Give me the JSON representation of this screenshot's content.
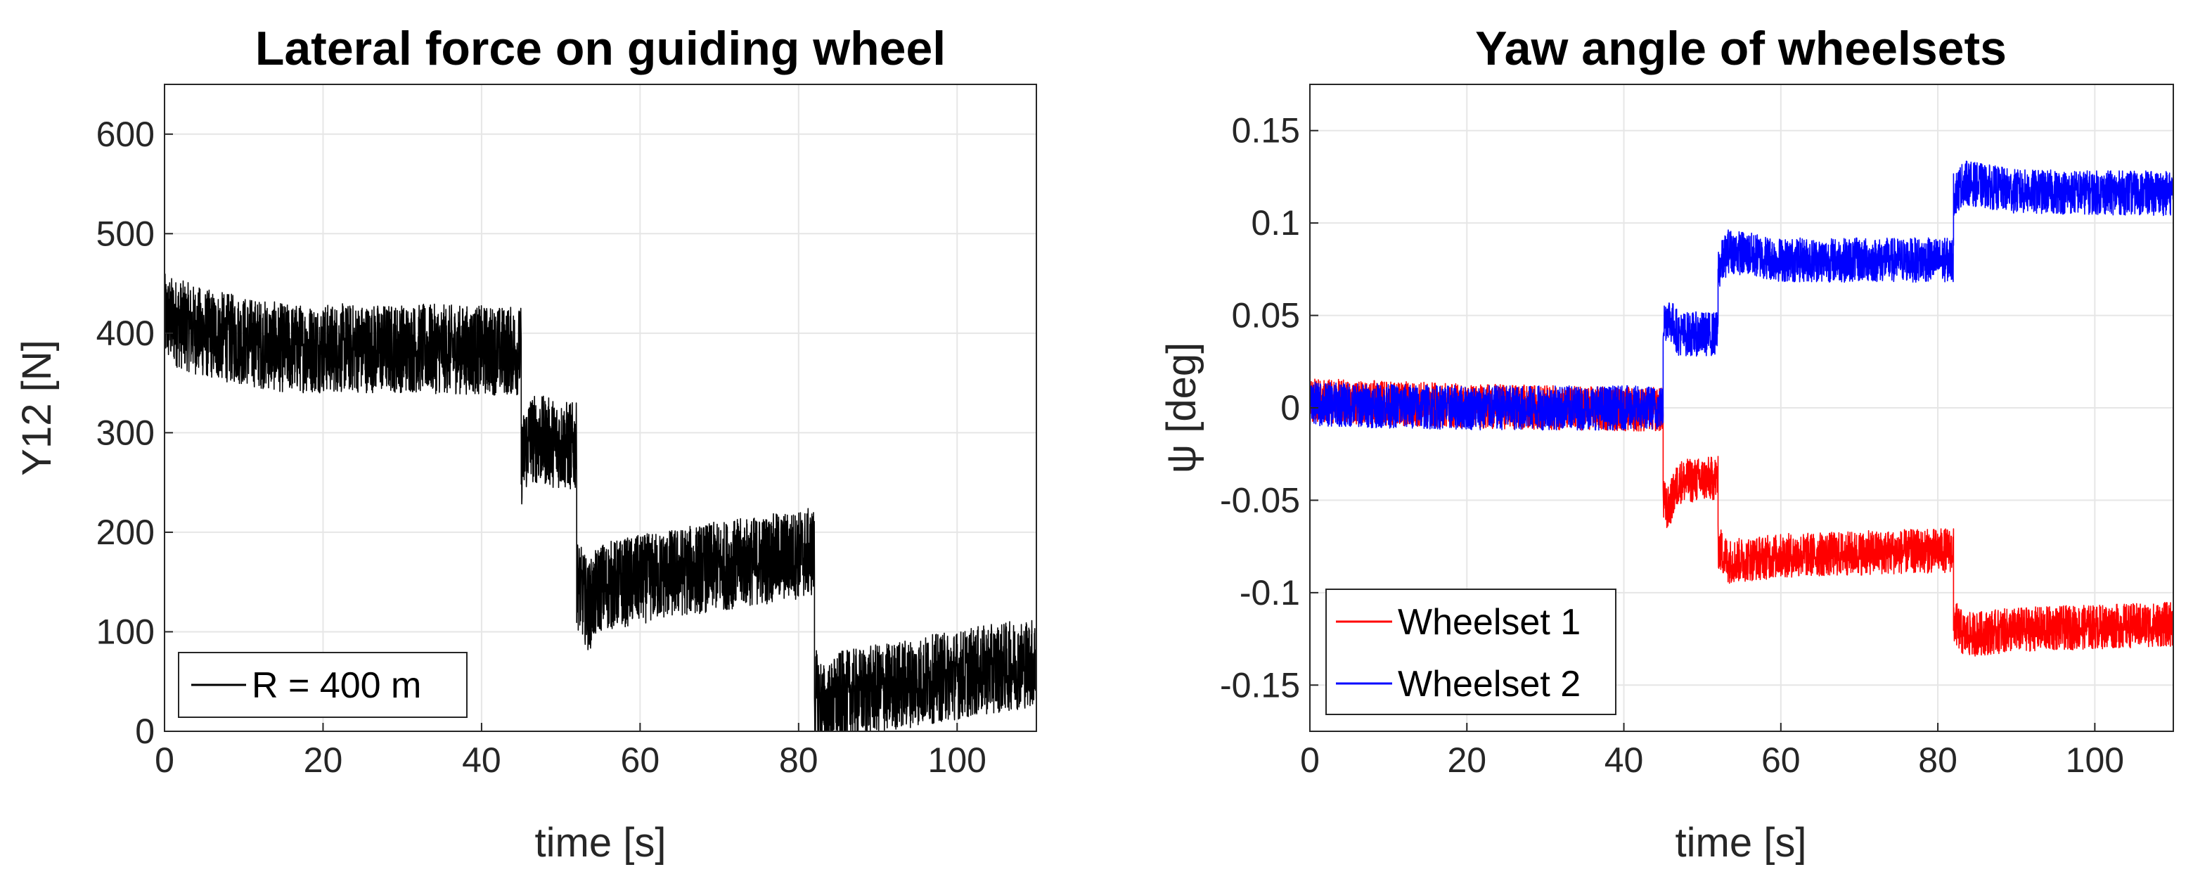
{
  "chart_data": [
    {
      "type": "line",
      "title": "Lateral force on guiding wheel",
      "xlabel": "time [s]",
      "ylabel": "Y12 [N]",
      "xlim": [
        0,
        110
      ],
      "ylim": [
        0,
        650
      ],
      "xticks": [
        "0",
        "20",
        "40",
        "60",
        "80",
        "100"
      ],
      "yticks": [
        "0",
        "100",
        "200",
        "300",
        "400",
        "500",
        "600"
      ],
      "grid": true,
      "legend_position": "bottom-left",
      "series": [
        {
          "name": "R = 400 m",
          "color": "#000000",
          "noise_band": 45,
          "segments": [
            {
              "t": [
                0,
                5,
                15,
                30,
                45
              ],
              "y": [
                415,
                400,
                385,
                385,
                382
              ]
            },
            {
              "t": [
                45,
                46,
                52
              ],
              "y": [
                270,
                295,
                285
              ]
            },
            {
              "t": [
                52,
                53.5,
                55,
                65,
                82
              ],
              "y": [
                150,
                125,
                145,
                160,
                180
              ]
            },
            {
              "t": [
                82,
                83.5,
                85,
                95,
                110
              ],
              "y": [
                40,
                20,
                35,
                50,
                70
              ]
            }
          ]
        }
      ]
    },
    {
      "type": "line",
      "title": "Yaw angle of wheelsets",
      "xlabel": "time [s]",
      "ylabel": "ψ [deg]",
      "xlim": [
        0,
        110
      ],
      "ylim": [
        -0.175,
        0.175
      ],
      "xticks": [
        "0",
        "20",
        "40",
        "60",
        "80",
        "100"
      ],
      "yticks": [
        "-0.15",
        "-0.1",
        "-0.05",
        "0",
        "0.05",
        "0.1",
        "0.15"
      ],
      "grid": true,
      "legend_position": "bottom-left",
      "series": [
        {
          "name": "Wheelset 1",
          "color": "#ff0000",
          "noise_band": 0.012,
          "segments": [
            {
              "t": [
                0,
                20,
                45
              ],
              "y": [
                0.004,
                0.001,
                -0.001
              ]
            },
            {
              "t": [
                45,
                45.6,
                47,
                52
              ],
              "y": [
                -0.05,
                -0.055,
                -0.04,
                -0.038
              ]
            },
            {
              "t": [
                52,
                53.3,
                60,
                82
              ],
              "y": [
                -0.075,
                -0.083,
                -0.08,
                -0.077
              ]
            },
            {
              "t": [
                82,
                83.3,
                90,
                110
              ],
              "y": [
                -0.115,
                -0.123,
                -0.12,
                -0.117
              ]
            }
          ]
        },
        {
          "name": "Wheelset 2",
          "color": "#0000ff",
          "noise_band": 0.012,
          "segments": [
            {
              "t": [
                0,
                20,
                45
              ],
              "y": [
                0.002,
                0.0,
                0.0
              ]
            },
            {
              "t": [
                45,
                45.6,
                47,
                52
              ],
              "y": [
                0.045,
                0.05,
                0.04,
                0.04
              ]
            },
            {
              "t": [
                52,
                53.3,
                60,
                82
              ],
              "y": [
                0.075,
                0.085,
                0.08,
                0.08
              ]
            },
            {
              "t": [
                82,
                83.3,
                90,
                110
              ],
              "y": [
                0.115,
                0.122,
                0.117,
                0.116
              ]
            }
          ]
        }
      ]
    }
  ]
}
